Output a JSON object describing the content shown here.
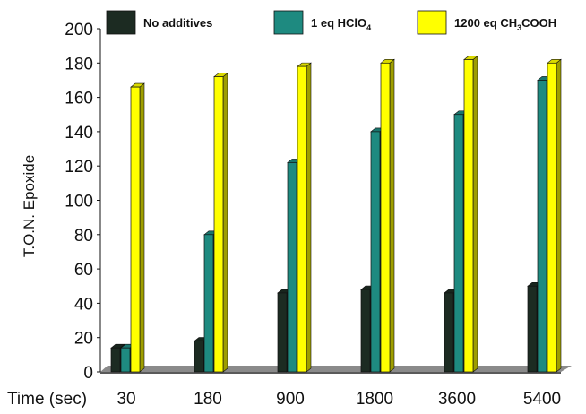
{
  "chart_data": {
    "type": "bar",
    "title": "",
    "xlabel": "Time (sec)",
    "ylabel": "T.O.N. Epoxide",
    "categories": [
      "30",
      "180",
      "900",
      "1800",
      "3600",
      "5400"
    ],
    "ylim": [
      0,
      200
    ],
    "yticks": [
      0,
      20,
      40,
      60,
      80,
      100,
      120,
      140,
      160,
      180,
      200
    ],
    "grid": false,
    "legend_position": "top",
    "series": [
      {
        "name": "No additives",
        "legend_parts": [
          "No additives"
        ],
        "color": "#1c2b22",
        "values": [
          14,
          18,
          46,
          48,
          46,
          50
        ]
      },
      {
        "name": "1 eq HClO4",
        "legend_parts": [
          "1 eq HClO",
          "4",
          ""
        ],
        "color": "#1e8a80",
        "values": [
          14,
          80,
          122,
          140,
          150,
          170
        ]
      },
      {
        "name": "1200 eq CH3COOH",
        "legend_parts": [
          "1200 eq CH",
          "3",
          "COOH"
        ],
        "color": "#ffff00",
        "values": [
          166,
          172,
          178,
          180,
          182,
          180
        ]
      }
    ],
    "floor_color": "#808080"
  }
}
